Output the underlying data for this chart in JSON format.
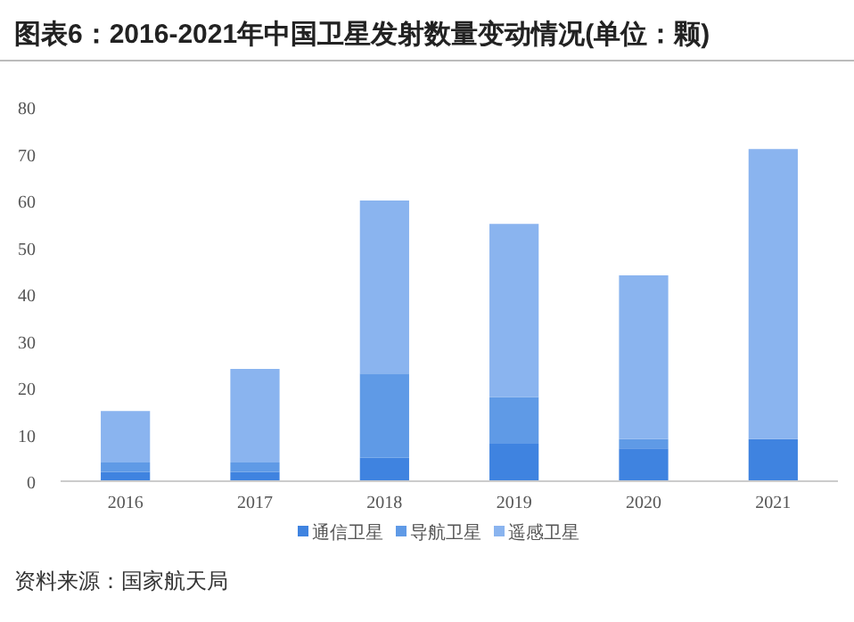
{
  "chart_data": {
    "type": "bar",
    "title": "图表6：2016-2021年中国卫星发射数量变动情况(单位：颗)",
    "stacked": true,
    "categories": [
      "2016",
      "2017",
      "2018",
      "2019",
      "2020",
      "2021"
    ],
    "series": [
      {
        "name": "通信卫星",
        "color": "#3f83e0",
        "values": [
          2,
          2,
          5,
          8,
          7,
          9
        ]
      },
      {
        "name": "导航卫星",
        "color": "#5f9ae6",
        "values": [
          2,
          2,
          18,
          10,
          2,
          0
        ]
      },
      {
        "name": "遥感卫星",
        "color": "#8ab4ef",
        "values": [
          11,
          20,
          37,
          37,
          35,
          62
        ]
      }
    ],
    "ylim": [
      0,
      80
    ],
    "yticks": [
      0,
      10,
      20,
      30,
      40,
      50,
      60,
      70,
      80
    ],
    "grid": false,
    "legend": "bottom",
    "annotations": [
      "资料来源：国家航天局"
    ]
  }
}
